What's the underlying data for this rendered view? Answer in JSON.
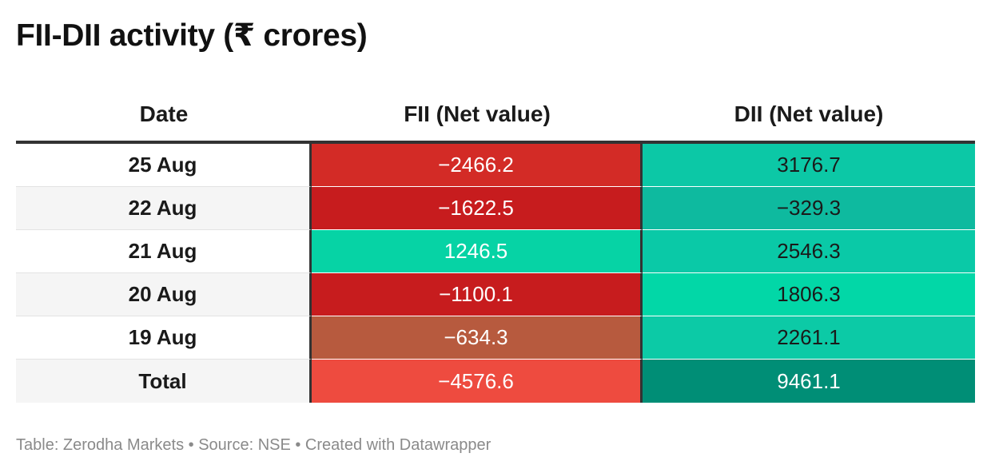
{
  "title": "FII-DII activity (₹ crores)",
  "footer": "Table: Zerodha Markets • Source: NSE • Created with Datawrapper",
  "chart_data": {
    "type": "table",
    "title": "FII-DII activity (₹ crores)",
    "columns": [
      "Date",
      "FII (Net value)",
      "DII (Net value)"
    ],
    "rows": [
      {
        "date": "25 Aug",
        "fii": "−2466.2",
        "dii": "3176.7",
        "fii_color": "#d32b26",
        "dii_color": "#0cc8a6"
      },
      {
        "date": "22 Aug",
        "fii": "−1622.5",
        "dii": "−329.3",
        "fii_color": "#c71c1e",
        "dii_color": "#0eba9f"
      },
      {
        "date": "21 Aug",
        "fii": "1246.5",
        "dii": "2546.3",
        "fii_color": "#06d3a5",
        "dii_color": "#0ac9a7"
      },
      {
        "date": "20 Aug",
        "fii": "−1100.1",
        "dii": "1806.3",
        "fii_color": "#c71c1e",
        "dii_color": "#02d7a7"
      },
      {
        "date": "19 Aug",
        "fii": "−634.3",
        "dii": "2261.1",
        "fii_color": "#b75a3e",
        "dii_color": "#0ccaa6"
      },
      {
        "date": "Total",
        "fii": "−4576.6",
        "dii": "9461.1",
        "fii_color": "#ee4b3f",
        "dii_color": "#008e76",
        "dii_text_color": "#ffffff"
      }
    ]
  }
}
